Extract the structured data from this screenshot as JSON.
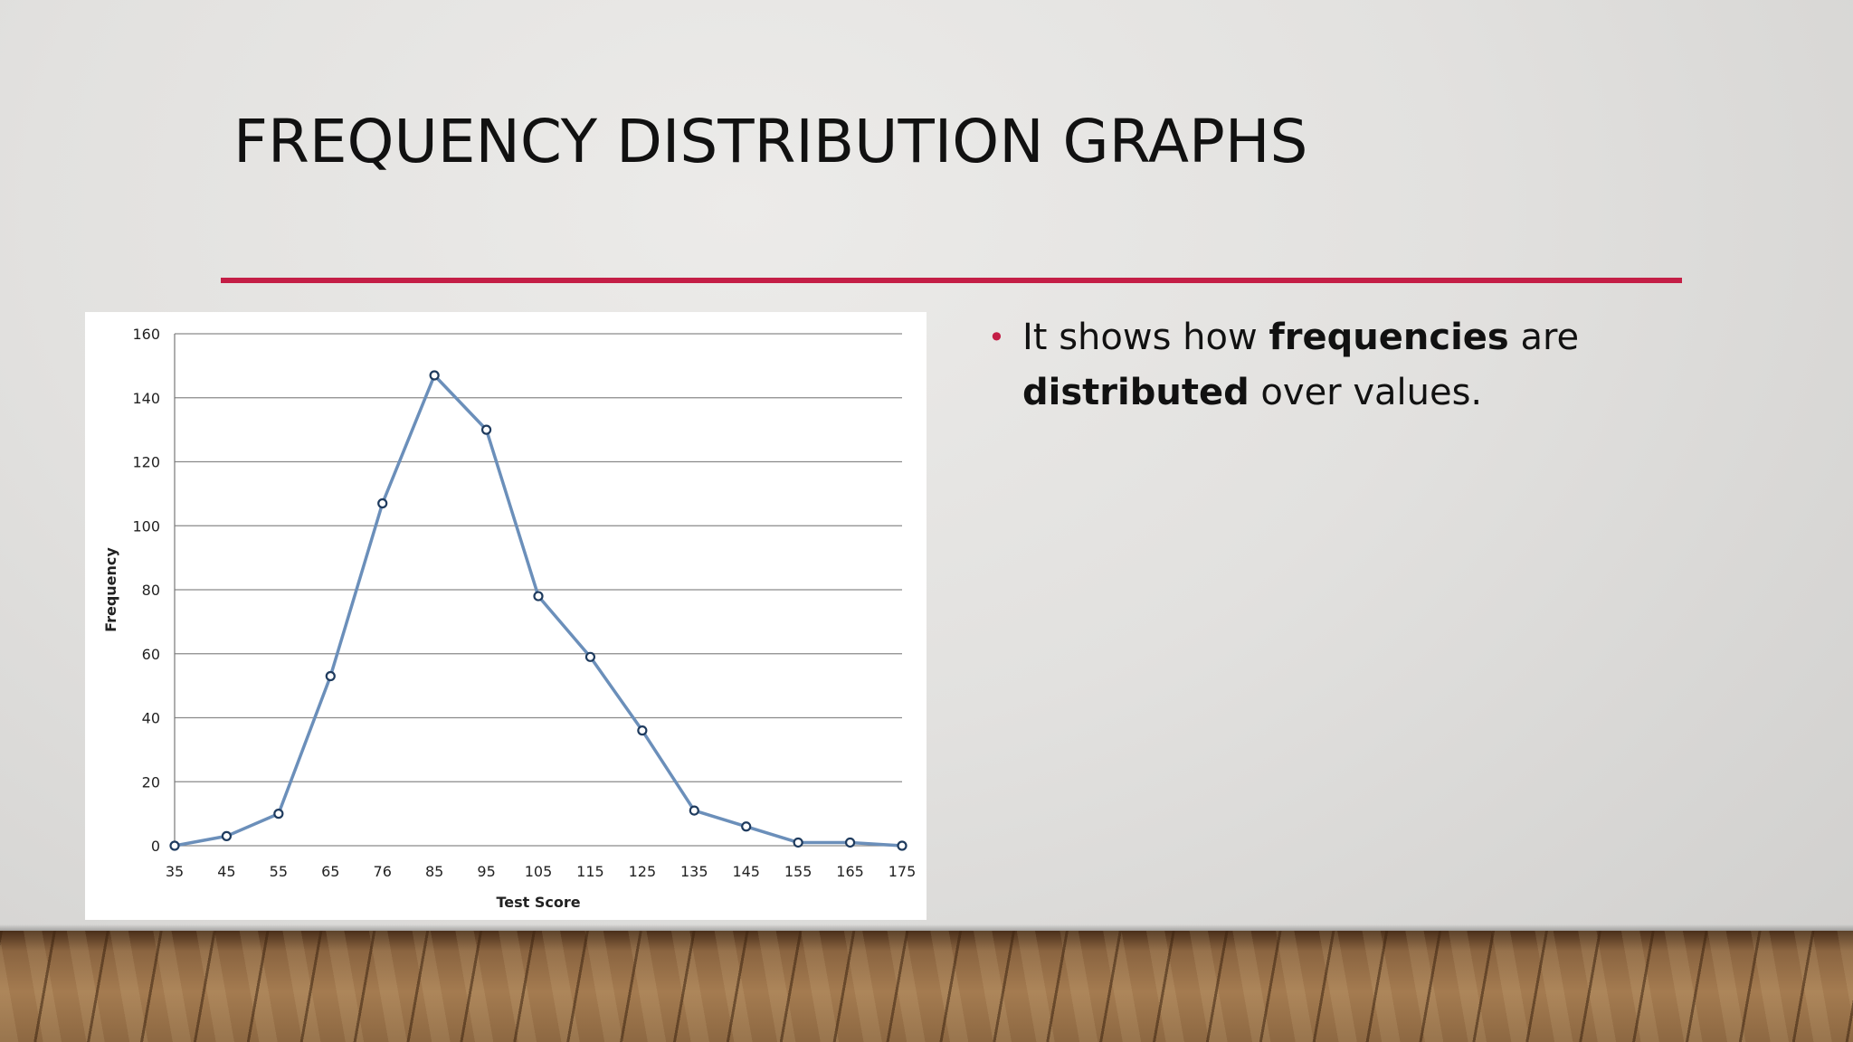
{
  "slide": {
    "title": "FREQUENCY DISTRIBUTION GRAPHS",
    "bullet": {
      "symbol": "•",
      "parts": [
        "It shows how ",
        "frequencies",
        " are ",
        "distributed",
        " over values."
      ]
    }
  },
  "colors": {
    "accent": "#c41e46",
    "line": "#6b8fba",
    "marker": "#1f3b5e",
    "grid": "#8a8a8a"
  },
  "chart_data": {
    "type": "line",
    "xlabel": "Test Score",
    "ylabel": "Frequency",
    "categories": [
      "35",
      "45",
      "55",
      "65",
      "76",
      "85",
      "95",
      "105",
      "115",
      "125",
      "135",
      "145",
      "155",
      "165",
      "175"
    ],
    "values": [
      0,
      3,
      10,
      53,
      107,
      147,
      130,
      78,
      59,
      36,
      11,
      6,
      1,
      1,
      0
    ],
    "ylim": [
      0,
      160
    ],
    "yticks": [
      0,
      20,
      40,
      60,
      80,
      100,
      120,
      140,
      160
    ],
    "grid": true,
    "legend": "none",
    "markers": "open circles"
  }
}
